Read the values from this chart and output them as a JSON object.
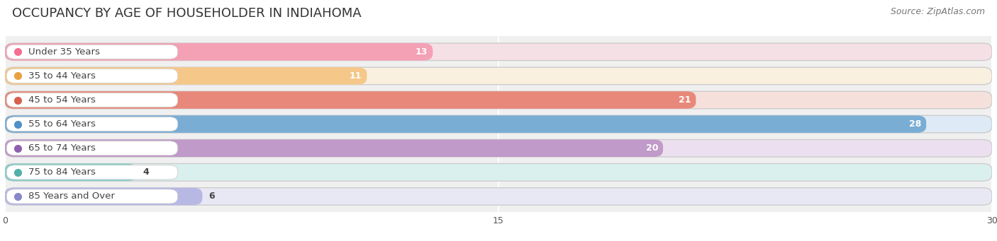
{
  "title": "OCCUPANCY BY AGE OF HOUSEHOLDER IN INDIAHOMA",
  "source": "Source: ZipAtlas.com",
  "categories": [
    "Under 35 Years",
    "35 to 44 Years",
    "45 to 54 Years",
    "55 to 64 Years",
    "65 to 74 Years",
    "75 to 84 Years",
    "85 Years and Over"
  ],
  "values": [
    13,
    11,
    21,
    28,
    20,
    4,
    6
  ],
  "bar_colors": [
    "#f4a0b5",
    "#f5c88a",
    "#e8887a",
    "#7aadd4",
    "#c09ac8",
    "#85cec8",
    "#b8b8e5"
  ],
  "bar_bg_colors": [
    "#f5e0e5",
    "#faf0e0",
    "#f5e0dc",
    "#deeaf5",
    "#ece0f0",
    "#daf0ee",
    "#e8e8f5"
  ],
  "dot_colors": [
    "#f47090",
    "#e8a040",
    "#d86050",
    "#5090c8",
    "#9060b0",
    "#50b0a8",
    "#8888cc"
  ],
  "xlim": [
    0,
    30
  ],
  "xticks": [
    0,
    15,
    30
  ],
  "title_fontsize": 13,
  "source_fontsize": 9,
  "label_fontsize": 9.5,
  "value_fontsize": 9,
  "background_color": "#ffffff",
  "plot_bg_color": "#f0f0f0"
}
